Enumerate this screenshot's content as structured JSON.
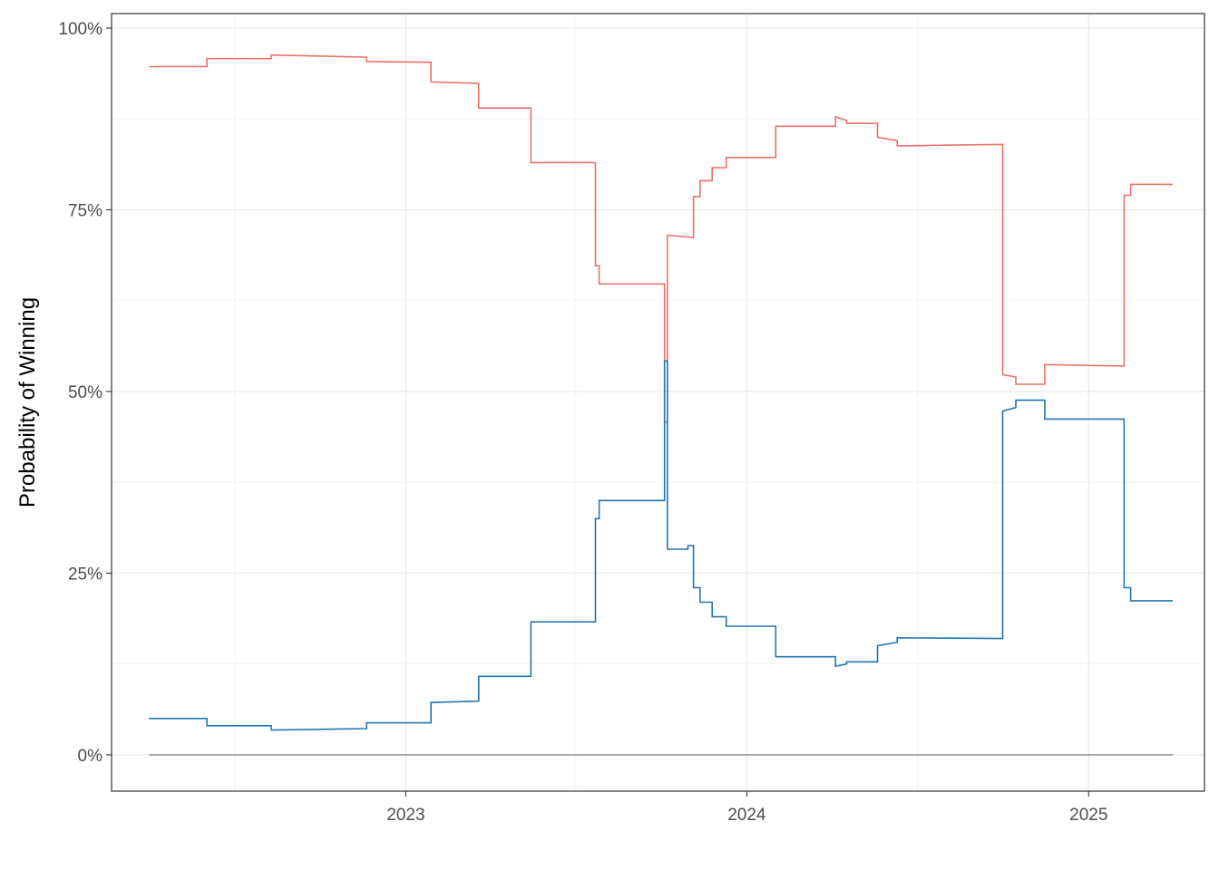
{
  "chart_data": {
    "type": "line",
    "title": "",
    "xlabel": "",
    "ylabel": "Probability of Winning",
    "x_axis": {
      "type": "date",
      "range": [
        "2022-02-20",
        "2025-05-05"
      ],
      "ticks": [
        {
          "value": "2023-01-01",
          "label": "2023"
        },
        {
          "value": "2024-01-01",
          "label": "2024"
        },
        {
          "value": "2025-01-01",
          "label": "2025"
        }
      ],
      "minor_gridlines": [
        "2022-07-02",
        "2023-07-02",
        "2024-07-02"
      ]
    },
    "y_axis": {
      "range": [
        -0.05,
        1.02
      ],
      "format": "percent",
      "ticks": [
        {
          "value": 0,
          "label": "0%"
        },
        {
          "value": 0.25,
          "label": "25%"
        },
        {
          "value": 0.5,
          "label": "50%"
        },
        {
          "value": 0.75,
          "label": "75%"
        },
        {
          "value": 1.0,
          "label": "100%"
        }
      ],
      "minor_gridlines": [
        0.125,
        0.375,
        0.625,
        0.875
      ]
    },
    "grid": true,
    "legend": "none",
    "series": [
      {
        "color": "#e8736a",
        "shape": "step",
        "points": [
          [
            "2022-04-01",
            0.947
          ],
          [
            "2022-06-02",
            0.947
          ],
          [
            "2022-06-02",
            0.958
          ],
          [
            "2022-08-10",
            0.958
          ],
          [
            "2022-08-10",
            0.963
          ],
          [
            "2022-11-20",
            0.96
          ],
          [
            "2022-11-20",
            0.954
          ],
          [
            "2023-01-28",
            0.953
          ],
          [
            "2023-01-28",
            0.926
          ],
          [
            "2023-03-20",
            0.924
          ],
          [
            "2023-03-20",
            0.89
          ],
          [
            "2023-05-15",
            0.89
          ],
          [
            "2023-05-15",
            0.815
          ],
          [
            "2023-07-23",
            0.815
          ],
          [
            "2023-07-23",
            0.673
          ],
          [
            "2023-07-27",
            0.673
          ],
          [
            "2023-07-27",
            0.648
          ],
          [
            "2023-10-05",
            0.648
          ],
          [
            "2023-10-05",
            0.458
          ],
          [
            "2023-10-08",
            0.458
          ],
          [
            "2023-10-08",
            0.715
          ],
          [
            "2023-11-05",
            0.712
          ],
          [
            "2023-11-05",
            0.768
          ],
          [
            "2023-11-12",
            0.768
          ],
          [
            "2023-11-12",
            0.79
          ],
          [
            "2023-11-25",
            0.79
          ],
          [
            "2023-11-25",
            0.808
          ],
          [
            "2023-12-10",
            0.808
          ],
          [
            "2023-12-10",
            0.822
          ],
          [
            "2024-02-01",
            0.822
          ],
          [
            "2024-02-01",
            0.865
          ],
          [
            "2024-04-05",
            0.865
          ],
          [
            "2024-04-05",
            0.878
          ],
          [
            "2024-04-17",
            0.873
          ],
          [
            "2024-04-17",
            0.869
          ],
          [
            "2024-05-20",
            0.869
          ],
          [
            "2024-05-20",
            0.85
          ],
          [
            "2024-06-10",
            0.845
          ],
          [
            "2024-06-10",
            0.838
          ],
          [
            "2024-10-01",
            0.84
          ],
          [
            "2024-10-01",
            0.523
          ],
          [
            "2024-10-15",
            0.52
          ],
          [
            "2024-10-15",
            0.51
          ],
          [
            "2024-11-15",
            0.51
          ],
          [
            "2024-11-15",
            0.537
          ],
          [
            "2025-02-08",
            0.535
          ],
          [
            "2025-02-08",
            0.77
          ],
          [
            "2025-02-15",
            0.77
          ],
          [
            "2025-02-15",
            0.785
          ],
          [
            "2025-04-01",
            0.785
          ]
        ]
      },
      {
        "color": "#2276b0",
        "shape": "step",
        "points": [
          [
            "2022-04-01",
            0.05
          ],
          [
            "2022-06-02",
            0.05
          ],
          [
            "2022-06-02",
            0.04
          ],
          [
            "2022-08-10",
            0.04
          ],
          [
            "2022-08-10",
            0.034
          ],
          [
            "2022-11-20",
            0.036
          ],
          [
            "2022-11-20",
            0.044
          ],
          [
            "2023-01-28",
            0.044
          ],
          [
            "2023-01-28",
            0.072
          ],
          [
            "2023-03-20",
            0.074
          ],
          [
            "2023-03-20",
            0.108
          ],
          [
            "2023-05-15",
            0.108
          ],
          [
            "2023-05-15",
            0.183
          ],
          [
            "2023-07-23",
            0.183
          ],
          [
            "2023-07-23",
            0.325
          ],
          [
            "2023-07-27",
            0.325
          ],
          [
            "2023-07-27",
            0.35
          ],
          [
            "2023-10-05",
            0.35
          ],
          [
            "2023-10-05",
            0.542
          ],
          [
            "2023-10-08",
            0.542
          ],
          [
            "2023-10-08",
            0.283
          ],
          [
            "2023-10-30",
            0.283
          ],
          [
            "2023-10-30",
            0.288
          ],
          [
            "2023-11-05",
            0.288
          ],
          [
            "2023-11-05",
            0.23
          ],
          [
            "2023-11-12",
            0.23
          ],
          [
            "2023-11-12",
            0.21
          ],
          [
            "2023-11-25",
            0.21
          ],
          [
            "2023-11-25",
            0.19
          ],
          [
            "2023-12-10",
            0.19
          ],
          [
            "2023-12-10",
            0.177
          ],
          [
            "2024-02-01",
            0.177
          ],
          [
            "2024-02-01",
            0.135
          ],
          [
            "2024-04-05",
            0.135
          ],
          [
            "2024-04-05",
            0.122
          ],
          [
            "2024-04-17",
            0.125
          ],
          [
            "2024-04-17",
            0.128
          ],
          [
            "2024-05-20",
            0.128
          ],
          [
            "2024-05-20",
            0.15
          ],
          [
            "2024-06-10",
            0.155
          ],
          [
            "2024-06-10",
            0.161
          ],
          [
            "2024-10-01",
            0.16
          ],
          [
            "2024-10-01",
            0.473
          ],
          [
            "2024-10-15",
            0.478
          ],
          [
            "2024-10-15",
            0.488
          ],
          [
            "2024-11-15",
            0.488
          ],
          [
            "2024-11-15",
            0.462
          ],
          [
            "2025-02-08",
            0.462
          ],
          [
            "2025-02-08",
            0.23
          ],
          [
            "2025-02-15",
            0.23
          ],
          [
            "2025-02-15",
            0.212
          ],
          [
            "2025-04-01",
            0.212
          ]
        ]
      },
      {
        "color": "#999999",
        "shape": "step",
        "points": [
          [
            "2022-04-01",
            0.0
          ],
          [
            "2025-04-01",
            0.0
          ]
        ]
      }
    ]
  }
}
